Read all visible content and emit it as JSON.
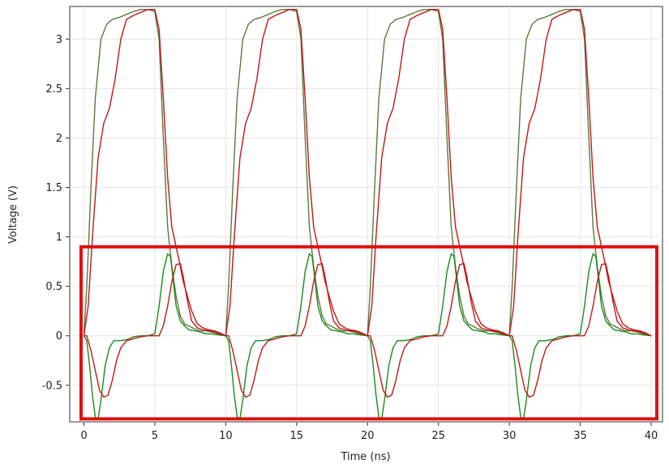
{
  "chart_data": {
    "type": "line",
    "title": "",
    "xlabel": "Time (ns)",
    "ylabel": "Voltage (V)",
    "xlim": [
      -1,
      40.8
    ],
    "ylim": [
      -0.87,
      3.33
    ],
    "grid": true,
    "legend": "none",
    "x_ticks": [
      0,
      5,
      10,
      15,
      20,
      25,
      30,
      35,
      40
    ],
    "x_tick_labels": [
      "0",
      "5",
      "10",
      "15",
      "20",
      "25",
      "30",
      "35",
      "40"
    ],
    "y_ticks": [
      -0.5,
      0,
      0.5,
      1,
      1.5,
      2,
      2.5,
      3
    ],
    "y_tick_labels": [
      "-0.5",
      "0",
      "0.5",
      "1",
      "1.5",
      "2",
      "2.5",
      "3"
    ],
    "period_ns": 10,
    "cycles": 4,
    "highlight_box": {
      "x": [
        -0.2,
        40.4
      ],
      "y": [
        -0.84,
        0.9
      ],
      "color": "#e01010"
    },
    "series": [
      {
        "color": "#5a7a3a",
        "cycle_x": [
          0,
          0.2,
          0.5,
          0.8,
          1.2,
          1.6,
          2.0,
          2.5,
          3.0,
          3.5,
          4.0,
          4.5,
          5.0,
          5.3,
          5.6,
          5.9,
          6.2,
          6.5,
          6.8,
          7.1,
          7.4,
          7.8,
          8.2,
          8.6,
          9.0,
          9.5,
          10.0
        ],
        "cycle_y": [
          0,
          0.5,
          1.5,
          2.4,
          3.0,
          3.15,
          3.2,
          3.22,
          3.25,
          3.28,
          3.3,
          3.3,
          3.28,
          3.0,
          2.0,
          1.1,
          0.7,
          0.4,
          0.2,
          0.12,
          0.1,
          0.07,
          0.05,
          0.05,
          0.04,
          0.02,
          0
        ]
      },
      {
        "color": "#c01818",
        "cycle_x": [
          0,
          0.3,
          0.6,
          1.0,
          1.4,
          1.8,
          2.2,
          2.6,
          3.0,
          3.5,
          4.0,
          4.5,
          5.0,
          5.3,
          5.6,
          5.9,
          6.2,
          6.5,
          6.8,
          7.0,
          7.3,
          7.6,
          8.0,
          8.4,
          8.8,
          9.2,
          9.6,
          10.0
        ],
        "cycle_y": [
          0,
          0.3,
          1.0,
          1.8,
          2.15,
          2.3,
          2.6,
          3.0,
          3.2,
          3.24,
          3.27,
          3.3,
          3.3,
          3.1,
          2.4,
          1.6,
          1.1,
          0.9,
          0.7,
          0.55,
          0.4,
          0.25,
          0.12,
          0.08,
          0.06,
          0.05,
          0.03,
          0
        ]
      },
      {
        "color": "#1a8a1a",
        "cycle_x": [
          0,
          0.2,
          0.4,
          0.6,
          0.8,
          1.0,
          1.2,
          1.5,
          1.8,
          2.1,
          2.5,
          3.0,
          3.5,
          4.0,
          4.5,
          5.0,
          5.3,
          5.6,
          5.9,
          6.1,
          6.3,
          6.5,
          6.8,
          7.1,
          7.4,
          7.8,
          8.2,
          8.6,
          9.0,
          9.5,
          10.0
        ],
        "cycle_y": [
          0,
          -0.05,
          -0.3,
          -0.6,
          -0.82,
          -0.84,
          -0.65,
          -0.3,
          -0.12,
          -0.05,
          -0.05,
          -0.04,
          -0.01,
          0.0,
          0.0,
          0.02,
          0.3,
          0.65,
          0.83,
          0.8,
          0.55,
          0.3,
          0.15,
          0.1,
          0.06,
          0.05,
          0.04,
          0.02,
          0.02,
          0.01,
          0
        ]
      },
      {
        "color": "#c41818",
        "cycle_x": [
          0,
          0.2,
          0.5,
          0.8,
          1.1,
          1.4,
          1.7,
          2.0,
          2.3,
          2.6,
          3.0,
          3.5,
          4.0,
          4.5,
          5.0,
          5.3,
          5.6,
          5.9,
          6.2,
          6.5,
          6.8,
          7.0,
          7.3,
          7.6,
          8.0,
          8.4,
          8.8,
          9.2,
          9.6,
          10.0
        ],
        "cycle_y": [
          0,
          0.0,
          -0.15,
          -0.35,
          -0.55,
          -0.62,
          -0.6,
          -0.45,
          -0.25,
          -0.12,
          -0.05,
          -0.03,
          -0.01,
          0.0,
          0.0,
          0.0,
          0.1,
          0.3,
          0.55,
          0.72,
          0.73,
          0.6,
          0.35,
          0.15,
          0.08,
          0.06,
          0.05,
          0.04,
          0.02,
          0
        ]
      }
    ]
  }
}
